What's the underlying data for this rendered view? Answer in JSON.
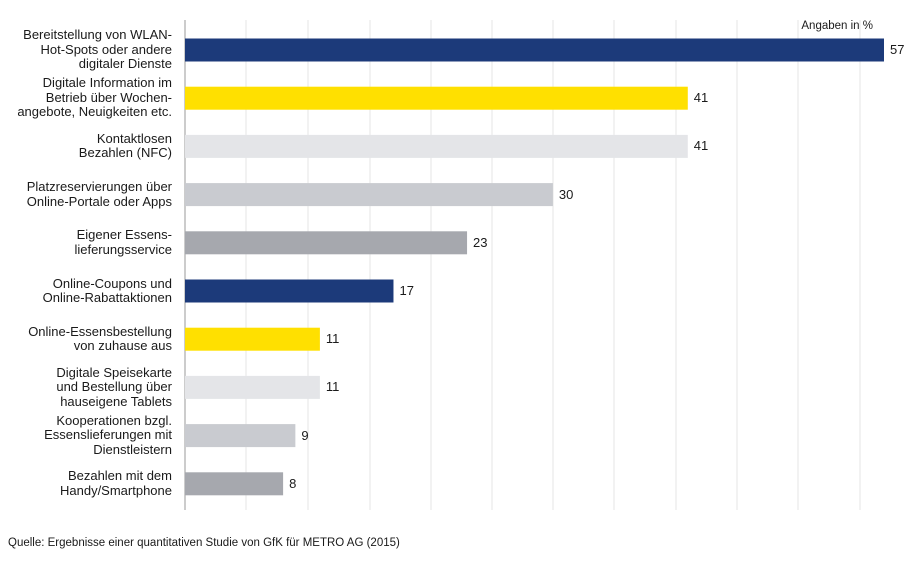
{
  "chart_data": {
    "type": "bar",
    "orientation": "horizontal",
    "unit_note": "Angaben in %",
    "categories": [
      [
        "Bereitstellung von WLAN-",
        "Hot-Spots oder andere",
        "digitaler Dienste"
      ],
      [
        "Digitale Information im",
        "Betrieb über Wochen-",
        "angebote, Neuigkeiten etc."
      ],
      [
        "Kontaktlosen",
        "Bezahlen (NFC)"
      ],
      [
        "Platzreservierungen über",
        "Online-Portale oder Apps"
      ],
      [
        "Eigener Essens-",
        "lieferungsservice"
      ],
      [
        "Online-Coupons und",
        "Online-Rabattaktionen"
      ],
      [
        "Online-Essensbestellung",
        "von zuhause aus"
      ],
      [
        "Digitale Speisekarte",
        "und Bestellung über",
        "hauseigene Tablets"
      ],
      [
        "Kooperationen bzgl.",
        "Essenslieferungen mit",
        "Dienstleistern"
      ],
      [
        "Bezahlen mit dem",
        "Handy/Smartphone"
      ]
    ],
    "values": [
      57,
      41,
      41,
      30,
      23,
      17,
      11,
      11,
      9,
      8
    ],
    "colors": [
      "#1c3a7a",
      "#ffe000",
      "#e4e5e8",
      "#c9cbd0",
      "#a6a8ae",
      "#1c3a7a",
      "#ffe000",
      "#e4e5e8",
      "#c9cbd0",
      "#a6a8ae"
    ],
    "xlim": [
      0,
      57
    ],
    "grid": true,
    "source": "Quelle: Ergebnisse einer quantitativen Studie von GfK für METRO AG (2015)"
  }
}
